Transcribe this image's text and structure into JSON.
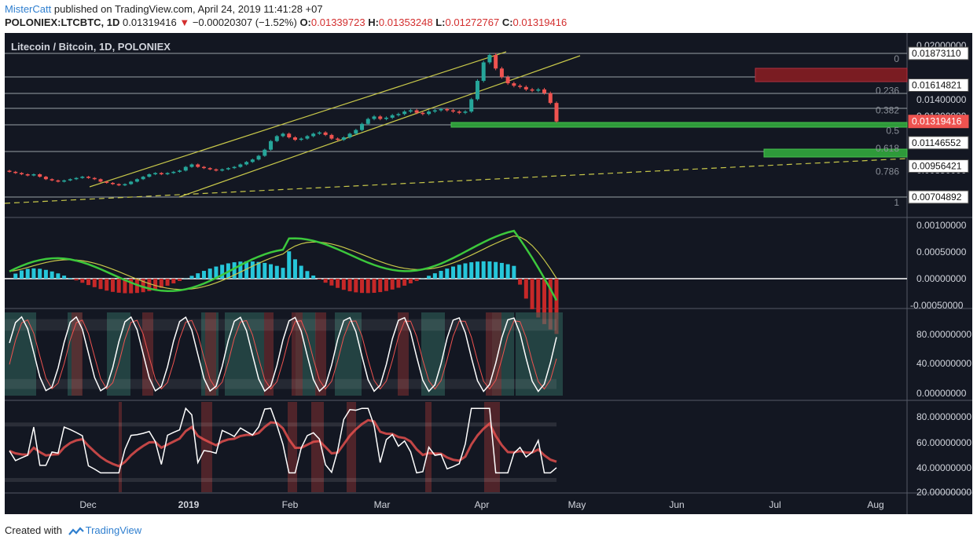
{
  "header": {
    "user": "MisterCatt",
    "published_text": "published on TradingView.com, April 24, 2019 11:41:28 +07",
    "symbol_interval": "POLONIEX:LTCBTC, 1D",
    "last": "0.01319416",
    "arrow": "▼",
    "change": "−0.00020307 (−1.52%)",
    "o_label": "O:",
    "o": "0.01339723",
    "h_label": "H:",
    "h": "0.01353248",
    "l_label": "L:",
    "l": "0.01272767",
    "c_label": "C:",
    "c": "0.01319416"
  },
  "footer": {
    "created_with": "Created with",
    "brand": "TradingView"
  },
  "colors": {
    "bg": "#131722",
    "up": "#26a69a",
    "down": "#ef5350",
    "channel": "#c8c84a",
    "grid": "#2a2e39"
  },
  "chart_data": {
    "type": "candlestick",
    "title": "Litecoin / Bitcoin, 1D, POLONIEX",
    "x_labels": [
      "Dec",
      "2019",
      "Feb",
      "Mar",
      "Apr",
      "May",
      "Jun",
      "Jul",
      "Aug"
    ],
    "price_ticks": [
      "0.02000000",
      "0.01400000",
      "0.01300000",
      "0.00850000"
    ],
    "price_axis_labels": [
      {
        "value": 0.0187311,
        "text": "0.01873110"
      },
      {
        "value": 0.01614821,
        "text": "0.01614821"
      },
      {
        "value": 0.01319416,
        "text": "0.01319416",
        "current": true
      },
      {
        "value": 0.01146552,
        "text": "0.01146552"
      },
      {
        "value": 0.00956421,
        "text": "0.00956421"
      },
      {
        "value": 0.00704892,
        "text": "0.00704892"
      }
    ],
    "fib_levels": [
      {
        "label": "0",
        "value": 0.0187311
      },
      {
        "label": "0.236",
        "value": 0.01614821
      },
      {
        "label": "0.382",
        "value": 0.01455
      },
      {
        "label": "0.5",
        "value": 0.01289
      },
      {
        "label": "0.618",
        "value": 0.01146552
      },
      {
        "label": "0.786",
        "value": 0.00956421
      },
      {
        "label": "1",
        "value": 0.00704892
      }
    ],
    "close_series": [
      0.0091,
      0.009,
      0.0089,
      0.0088,
      0.0089,
      0.0087,
      0.0085,
      0.0084,
      0.0083,
      0.0084,
      0.0085,
      0.0086,
      0.0087,
      0.0086,
      0.0085,
      0.0083,
      0.0082,
      0.0081,
      0.008,
      0.0081,
      0.0083,
      0.0085,
      0.0087,
      0.0089,
      0.009,
      0.0089,
      0.009,
      0.0091,
      0.0092,
      0.0095,
      0.0097,
      0.0095,
      0.0094,
      0.0093,
      0.0092,
      0.0093,
      0.0094,
      0.0095,
      0.0097,
      0.0099,
      0.0101,
      0.0104,
      0.0109,
      0.0116,
      0.012,
      0.0122,
      0.0119,
      0.0117,
      0.0118,
      0.012,
      0.0122,
      0.0123,
      0.0121,
      0.0118,
      0.0117,
      0.0119,
      0.0122,
      0.0125,
      0.013,
      0.0134,
      0.0136,
      0.0134,
      0.0135,
      0.0137,
      0.0138,
      0.014,
      0.0141,
      0.0139,
      0.0138,
      0.014,
      0.0141,
      0.0142,
      0.0141,
      0.014,
      0.0139,
      0.014,
      0.015,
      0.0165,
      0.018,
      0.0186,
      0.0175,
      0.0168,
      0.0163,
      0.0161,
      0.016,
      0.0158,
      0.0157,
      0.0158,
      0.0155,
      0.0147,
      0.01319416
    ],
    "macd": {
      "yticks": [
        "0.00100000",
        "0.00050000",
        "0.00000000",
        "-0.00050000"
      ],
      "ymin": -0.0005,
      "ymax": 0.001
    },
    "stoch_rsi": {
      "yticks": [
        "80.00000000",
        "40.00000000",
        "0.00000000"
      ],
      "ymin": 0,
      "ymax": 100
    },
    "rsi": {
      "yticks": [
        "80.00000000",
        "60.00000000",
        "40.00000000",
        "20.00000000"
      ],
      "ymin": 20,
      "ymax": 90
    }
  }
}
